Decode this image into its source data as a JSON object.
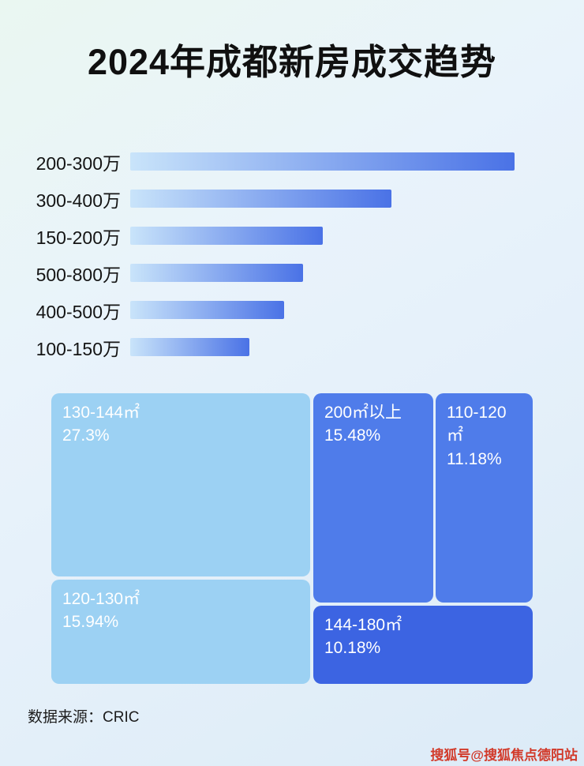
{
  "page": {
    "title": "2024年成都新房成交趋势",
    "source": "数据来源：CRIC",
    "watermark": "搜狐号@搜狐焦点德阳站"
  },
  "colors": {
    "bar_gradient_start": "#c9e4fa",
    "bar_gradient_end": "#4a72e6",
    "treemap_light_blue": "#9cd1f3",
    "treemap_medium_blue": "#4f7cea",
    "treemap_dark_blue": "#3c64e2"
  },
  "chart_data": [
    {
      "type": "bar",
      "orientation": "horizontal",
      "title": "2024年成都新房成交趋势",
      "categories": [
        "200-300万",
        "300-400万",
        "150-200万",
        "500-800万",
        "400-500万",
        "100-150万"
      ],
      "values": [
        100,
        68,
        50,
        45,
        40,
        31
      ],
      "value_note": "relative bar lengths estimated from pixels, max bar = 100",
      "bar_color_start": "#c9e4fa",
      "bar_color_end": "#4a72e6",
      "grid": false,
      "legend": false
    },
    {
      "type": "treemap",
      "items": [
        {
          "label": "130-144㎡",
          "value": "27.3%",
          "color": "#9cd1f3"
        },
        {
          "label": "200㎡以上",
          "value": "15.48%",
          "color": "#4f7cea"
        },
        {
          "label": "110-120㎡",
          "value": "11.18%",
          "color": "#4f7cea"
        },
        {
          "label": "120-130㎡",
          "value": "15.94%",
          "color": "#9cd1f3"
        },
        {
          "label": "144-180㎡",
          "value": "10.18%",
          "color": "#3c64e2"
        }
      ]
    }
  ]
}
